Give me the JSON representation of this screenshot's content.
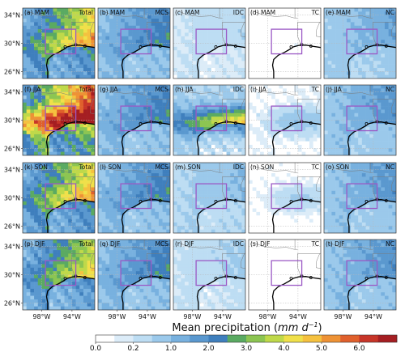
{
  "chart_data": {
    "type": "heatmap",
    "rows": [
      "MAM",
      "JJA",
      "SON",
      "DJF"
    ],
    "columns": [
      "Total",
      "MCS",
      "IDC",
      "TC",
      "NC"
    ],
    "panels": [
      {
        "tag": "(a)",
        "season": "MAM",
        "component": "Total"
      },
      {
        "tag": "(b)",
        "season": "MAM",
        "component": "MCS"
      },
      {
        "tag": "(c)",
        "season": "MAM",
        "component": "IDC"
      },
      {
        "tag": "(d)",
        "season": "MAM",
        "component": "TC"
      },
      {
        "tag": "(e)",
        "season": "MAM",
        "component": "NC"
      },
      {
        "tag": "(f)",
        "season": "JJA",
        "component": "Total"
      },
      {
        "tag": "(g)",
        "season": "JJA",
        "component": "MCS"
      },
      {
        "tag": "(h)",
        "season": "JJA",
        "component": "IDC"
      },
      {
        "tag": "(i)",
        "season": "JJA",
        "component": "TC"
      },
      {
        "tag": "(j)",
        "season": "JJA",
        "component": "NC"
      },
      {
        "tag": "(k)",
        "season": "SON",
        "component": "Total"
      },
      {
        "tag": "(l)",
        "season": "SON",
        "component": "MCS"
      },
      {
        "tag": "(m)",
        "season": "SON",
        "component": "IDC"
      },
      {
        "tag": "(n)",
        "season": "SON",
        "component": "TC"
      },
      {
        "tag": "(o)",
        "season": "SON",
        "component": "NC"
      },
      {
        "tag": "(p)",
        "season": "DJF",
        "component": "Total"
      },
      {
        "tag": "(q)",
        "season": "DJF",
        "component": "MCS"
      },
      {
        "tag": "(r)",
        "season": "DJF",
        "component": "IDC"
      },
      {
        "tag": "(s)",
        "season": "DJF",
        "component": "TC"
      },
      {
        "tag": "(t)",
        "season": "DJF",
        "component": "NC"
      }
    ],
    "lon_range": [
      -100.5,
      -91
    ],
    "lat_range": [
      25,
      35
    ],
    "ytick_labels": [
      "34°N",
      "30°N",
      "26°N"
    ],
    "ytick_values": [
      34,
      30,
      26
    ],
    "xtick_labels": [
      "98°W",
      "94°W"
    ],
    "xtick_values": [
      -98,
      -94
    ],
    "box_region": {
      "lon": [
        -97.5,
        -93.5
      ],
      "lat": [
        28.5,
        32
      ]
    },
    "box_color": "#9b59c5",
    "approx_region_mean": {
      "Total": [
        3.0,
        4.2,
        3.0,
        2.6
      ],
      "MCS": [
        1.6,
        1.6,
        1.6,
        1.6
      ],
      "IDC": [
        0.4,
        1.8,
        0.9,
        0.5
      ],
      "TC": [
        0.05,
        0.5,
        0.3,
        0.02
      ],
      "NC": [
        1.1,
        1.3,
        1.3,
        1.4
      ]
    },
    "colorbar": {
      "title": "Mean precipitation",
      "units": "mm d",
      "units_exponent": "−1",
      "tick_labels": [
        "0.0",
        "0.2",
        "1.0",
        "2.0",
        "3.0",
        "4.0",
        "5.0",
        "6.0"
      ],
      "levels": [
        0,
        0.1,
        0.2,
        0.5,
        1.0,
        1.5,
        2.0,
        2.5,
        3.0,
        3.5,
        4.0,
        4.5,
        5.0,
        5.5,
        6.0,
        6.5,
        7.0
      ],
      "colors": [
        "#ffffff",
        "#dcecf8",
        "#bdddf3",
        "#9bc9eb",
        "#78b1df",
        "#5a98cf",
        "#3f7fbd",
        "#5aaa62",
        "#8cc552",
        "#bfd94a",
        "#f0e04a",
        "#f5c13f",
        "#ee9235",
        "#e0602c",
        "#c73528",
        "#a51e22"
      ]
    }
  }
}
